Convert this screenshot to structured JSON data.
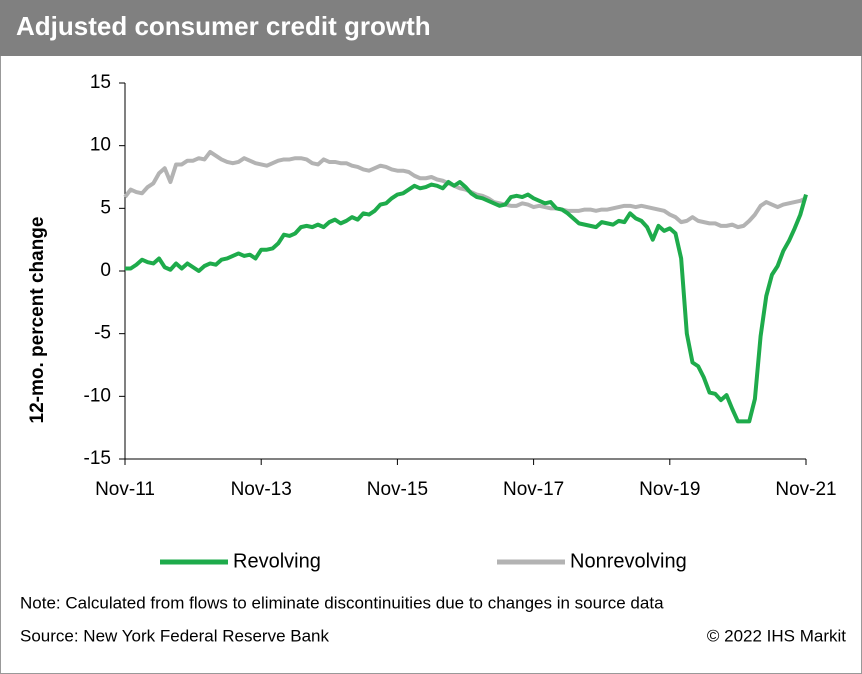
{
  "chart_data": {
    "type": "line",
    "title": "Adjusted consumer credit growth",
    "y_label": "12-mo. percent change",
    "note": "Note: Calculated from flows to eliminate discontinuities due to changes in source data",
    "source": "Source: New York  Federal  Reserve Bank",
    "copyright": "© 2022 IHS Markit",
    "categories": [
      "Nov-11",
      null,
      null,
      null,
      null,
      null,
      null,
      null,
      null,
      null,
      null,
      null,
      null,
      null,
      null,
      null,
      null,
      null,
      null,
      null,
      null,
      null,
      null,
      null,
      "Nov-13",
      null,
      null,
      null,
      null,
      null,
      null,
      null,
      null,
      null,
      null,
      null,
      null,
      null,
      null,
      null,
      null,
      null,
      null,
      null,
      null,
      null,
      null,
      null,
      "Nov-15",
      null,
      null,
      null,
      null,
      null,
      null,
      null,
      null,
      null,
      null,
      null,
      null,
      null,
      null,
      null,
      null,
      null,
      null,
      null,
      null,
      null,
      null,
      null,
      "Nov-17",
      null,
      null,
      null,
      null,
      null,
      null,
      null,
      null,
      null,
      null,
      null,
      null,
      null,
      null,
      null,
      null,
      null,
      null,
      null,
      null,
      null,
      null,
      null,
      "Nov-19",
      null,
      null,
      null,
      null,
      null,
      null,
      null,
      null,
      null,
      null,
      null,
      null,
      null,
      null,
      null,
      null,
      null,
      null,
      null,
      null,
      null,
      null,
      null,
      "Nov-21"
    ],
    "series": [
      {
        "name": "Revolving",
        "color": "#1eab4b",
        "values": [
          0.2,
          0.2,
          0.5,
          0.9,
          0.7,
          0.6,
          1.0,
          0.3,
          0.1,
          0.6,
          0.2,
          0.6,
          0.3,
          0.0,
          0.4,
          0.6,
          0.5,
          0.9,
          1.0,
          1.2,
          1.4,
          1.2,
          1.3,
          1.0,
          1.7,
          1.7,
          1.8,
          2.2,
          2.9,
          2.8,
          3.0,
          3.5,
          3.6,
          3.5,
          3.7,
          3.5,
          3.9,
          4.1,
          3.8,
          4.0,
          4.3,
          4.1,
          4.6,
          4.5,
          4.8,
          5.3,
          5.4,
          5.8,
          6.1,
          6.2,
          6.5,
          6.8,
          6.6,
          6.7,
          6.9,
          6.8,
          6.6,
          7.1,
          6.8,
          7.1,
          6.7,
          6.2,
          5.9,
          5.8,
          5.6,
          5.4,
          5.2,
          5.3,
          5.9,
          6.0,
          5.9,
          6.1,
          5.8,
          5.6,
          5.4,
          5.5,
          5.0,
          4.9,
          4.6,
          4.2,
          3.8,
          3.7,
          3.6,
          3.5,
          3.9,
          3.8,
          3.7,
          4.0,
          3.9,
          4.6,
          4.2,
          4.0,
          3.5,
          2.5,
          3.6,
          3.2,
          3.4,
          3.0,
          1.0,
          -5.0,
          -7.3,
          -7.6,
          -8.5,
          -9.7,
          -9.8,
          -10.3,
          -9.9,
          -11.0,
          -12.0,
          -12.0,
          -12.0,
          -10.2,
          -5.2,
          -2.0,
          -0.3,
          0.4,
          1.6,
          2.4,
          3.4,
          4.5,
          6.1
        ]
      },
      {
        "name": "Nonrevolving",
        "color": "#b3b3b3",
        "values": [
          5.9,
          6.5,
          6.3,
          6.2,
          6.7,
          7.0,
          7.8,
          8.2,
          7.1,
          8.5,
          8.5,
          8.8,
          8.8,
          9.0,
          8.9,
          9.5,
          9.2,
          8.9,
          8.7,
          8.6,
          8.7,
          9.0,
          8.8,
          8.6,
          8.5,
          8.4,
          8.6,
          8.8,
          8.9,
          8.9,
          9.0,
          9.0,
          8.9,
          8.6,
          8.5,
          8.9,
          8.7,
          8.7,
          8.6,
          8.6,
          8.4,
          8.3,
          8.1,
          8.0,
          8.2,
          8.4,
          8.3,
          8.1,
          8.0,
          8.0,
          7.9,
          7.6,
          7.4,
          7.4,
          7.5,
          7.3,
          7.2,
          7.0,
          6.8,
          6.6,
          6.5,
          6.3,
          6.1,
          6.0,
          5.8,
          5.5,
          5.4,
          5.3,
          5.2,
          5.2,
          5.4,
          5.3,
          5.1,
          5.2,
          5.1,
          5.0,
          5.0,
          4.9,
          4.8,
          4.8,
          4.8,
          4.9,
          4.9,
          4.8,
          4.9,
          4.9,
          5.0,
          5.1,
          5.2,
          5.2,
          5.1,
          5.2,
          5.1,
          5.0,
          4.9,
          4.8,
          4.5,
          4.3,
          3.9,
          4.0,
          4.3,
          4.0,
          3.9,
          3.8,
          3.8,
          3.6,
          3.6,
          3.7,
          3.5,
          3.6,
          4.0,
          4.5,
          5.2,
          5.5,
          5.3,
          5.1,
          5.3,
          5.4,
          5.5,
          5.6,
          5.8
        ]
      }
    ],
    "ylim": [
      -15,
      15
    ],
    "yticks": [
      15,
      10,
      5,
      0,
      -5,
      -10,
      -15
    ]
  }
}
